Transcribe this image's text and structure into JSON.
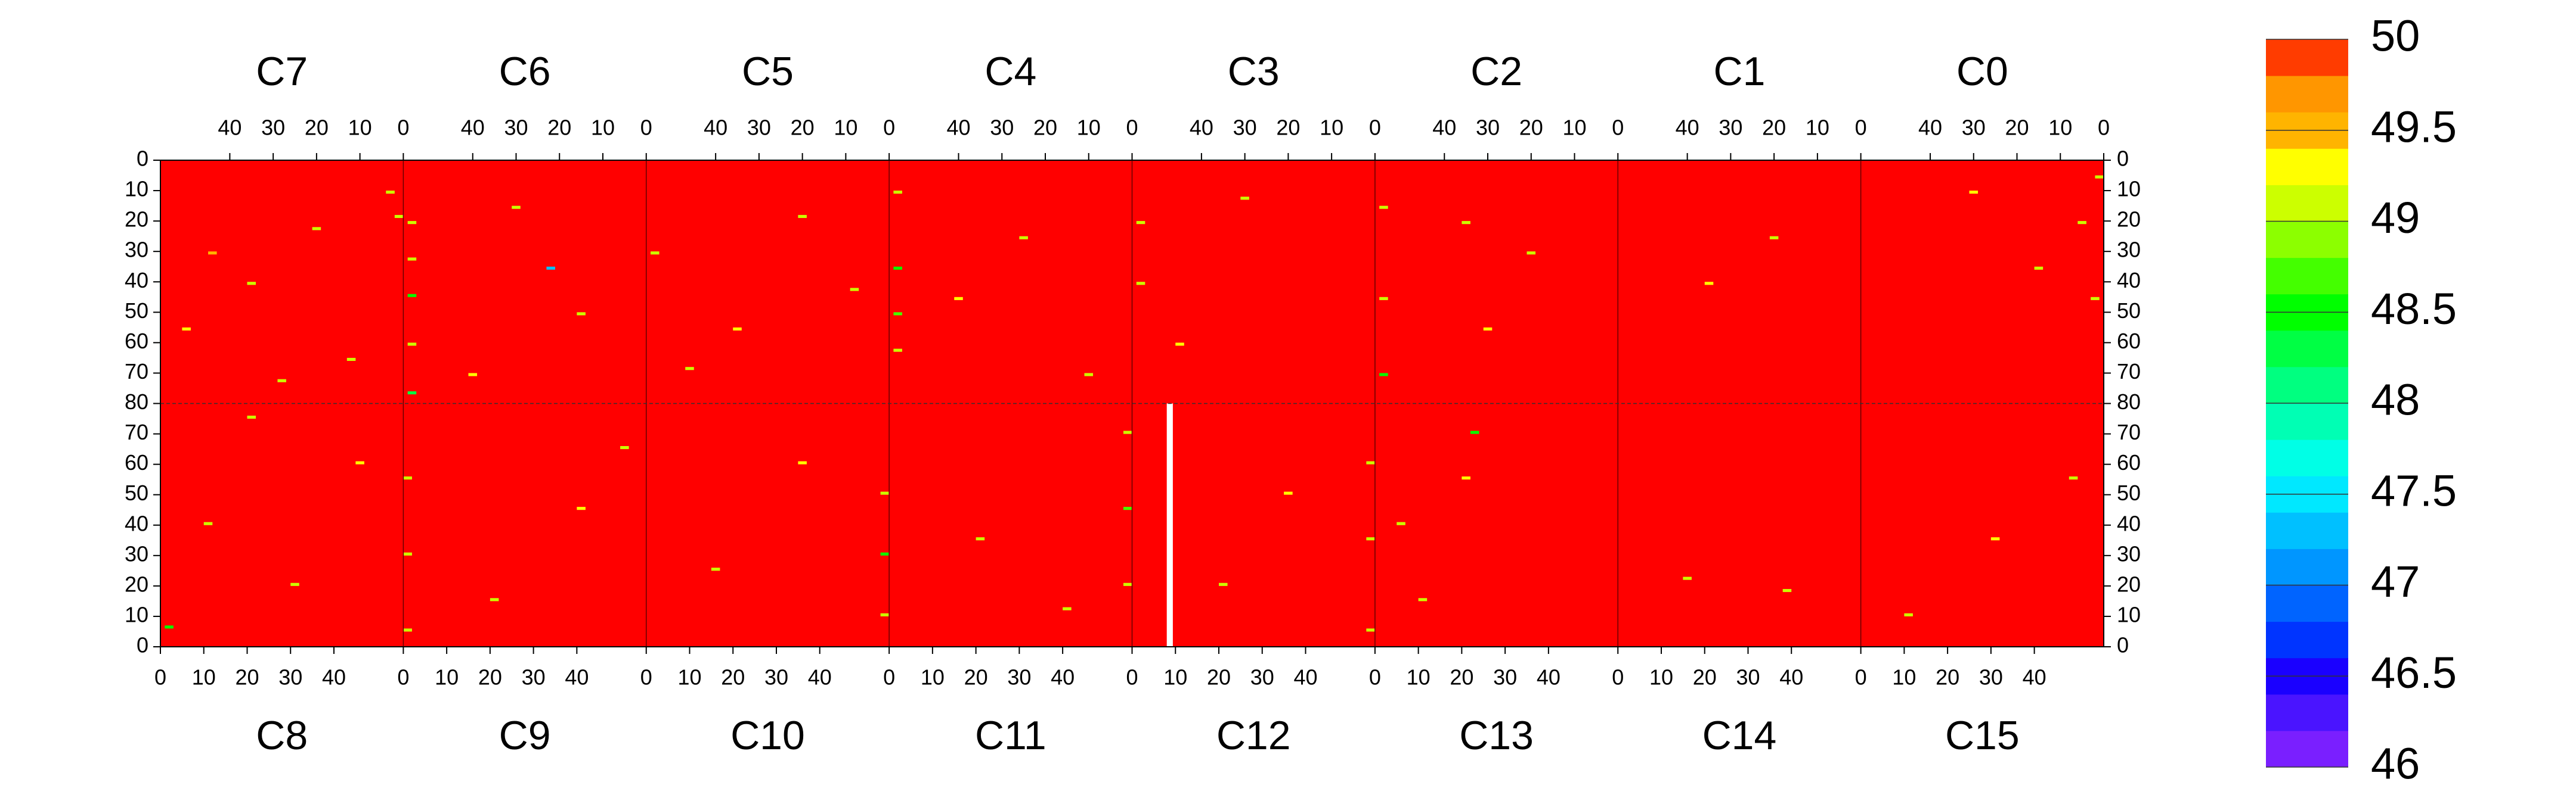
{
  "chart_data": {
    "type": "heatmap",
    "top_chips": [
      "C7",
      "C6",
      "C5",
      "C4",
      "C3",
      "C2",
      "C1",
      "C0"
    ],
    "bottom_chips": [
      "C8",
      "C9",
      "C10",
      "C11",
      "C12",
      "C13",
      "C14",
      "C15"
    ],
    "xlim": [
      0,
      56
    ],
    "xticks": [
      0,
      10,
      20,
      30,
      40
    ],
    "ylim": [
      0,
      80
    ],
    "yticks": [
      0,
      10,
      20,
      30,
      40,
      50,
      60,
      70,
      80
    ],
    "background_value": 50,
    "points": {
      "chip": [
        "C7",
        "C7",
        "C7",
        "C7",
        "C7",
        "C7",
        "C7",
        "C7",
        "C6",
        "C6",
        "C6",
        "C6",
        "C6",
        "C6",
        "C6",
        "C6",
        "C6",
        "C5",
        "C5",
        "C5",
        "C5",
        "C5",
        "C4",
        "C4",
        "C4",
        "C4",
        "C4",
        "C4",
        "C4",
        "C3",
        "C3",
        "C3",
        "C3",
        "C2",
        "C2",
        "C2",
        "C2",
        "C2",
        "C2",
        "C1",
        "C1",
        "C0",
        "C0",
        "C0",
        "C0",
        "C0",
        "C8",
        "C8",
        "C8",
        "C8",
        "C8",
        "C9",
        "C9",
        "C9",
        "C9",
        "C9",
        "C9",
        "C10",
        "C10",
        "C10",
        "C10",
        "C10",
        "C11",
        "C11",
        "C11",
        "C11",
        "C11",
        "C12",
        "C12",
        "C12",
        "C12",
        "C12",
        "C13",
        "C13",
        "C13",
        "C13",
        "C14",
        "C14",
        "C15",
        "C15",
        "C15"
      ],
      "x": [
        3,
        20,
        35,
        50,
        12,
        44,
        1,
        28,
        54,
        54,
        54,
        54,
        54,
        30,
        15,
        40,
        22,
        54,
        20,
        35,
        8,
        46,
        54,
        54,
        54,
        54,
        25,
        40,
        10,
        54,
        54,
        30,
        45,
        54,
        54,
        54,
        20,
        30,
        35,
        20,
        35,
        5,
        2,
        15,
        30,
        1,
        1,
        10,
        30,
        45,
        20,
        0,
        0,
        0,
        20,
        40,
        50,
        54,
        54,
        54,
        15,
        35,
        54,
        54,
        54,
        20,
        40,
        54,
        54,
        54,
        20,
        35,
        5,
        10,
        20,
        22,
        15,
        38,
        10,
        30,
        48
      ],
      "y": [
        10,
        22,
        40,
        55,
        65,
        30,
        18,
        72,
        20,
        32,
        44,
        60,
        76,
        15,
        50,
        70,
        35,
        30,
        18,
        55,
        42,
        68,
        10,
        35,
        50,
        62,
        25,
        45,
        70,
        20,
        40,
        12,
        60,
        15,
        45,
        70,
        30,
        55,
        20,
        25,
        40,
        20,
        45,
        35,
        10,
        5,
        6,
        40,
        20,
        60,
        75,
        5,
        30,
        55,
        15,
        45,
        65,
        10,
        30,
        50,
        25,
        60,
        20,
        45,
        70,
        35,
        12,
        5,
        35,
        60,
        20,
        50,
        40,
        15,
        55,
        70,
        22,
        18,
        10,
        35,
        55
      ],
      "values": [
        49.1,
        49.1,
        49,
        49.2,
        49.1,
        49.4,
        49.1,
        49,
        49,
        49,
        48.4,
        49,
        48.2,
        49.1,
        49,
        49.2,
        47.2,
        49,
        49.1,
        49.2,
        49,
        49.1,
        49,
        48.4,
        48.6,
        49,
        49.1,
        49.2,
        49,
        49,
        49.1,
        49.1,
        49.2,
        49,
        49,
        48.4,
        49.1,
        49.2,
        49,
        49.1,
        49.2,
        49.1,
        49,
        49.1,
        49.2,
        49,
        48.4,
        49.1,
        49,
        49.2,
        49.1,
        49,
        49,
        49.1,
        49.1,
        49.2,
        49,
        49,
        48.4,
        49,
        49.1,
        49.2,
        49,
        48.6,
        49.1,
        49.1,
        49,
        49,
        49.1,
        49,
        49.1,
        49.2,
        49,
        49.1,
        49.2,
        48.4,
        49.1,
        49,
        49.1,
        49.2,
        49
      ]
    },
    "blank": {
      "chip": "C12",
      "x": 8
    },
    "colorbar": {
      "levels": [
        46,
        46.2,
        46.4,
        46.6,
        46.8,
        47,
        47.2,
        47.4,
        47.6,
        47.8,
        48,
        48.2,
        48.4,
        48.6,
        48.8,
        49,
        49.2,
        49.4,
        49.6,
        49.8,
        50
      ],
      "colors": [
        "#7a1fff",
        "#4a14ff",
        "#1a00ff",
        "#0034ff",
        "#0064ff",
        "#0096ff",
        "#00c0ff",
        "#00e8ff",
        "#00ffe6",
        "#00ffb4",
        "#00ff80",
        "#00ff44",
        "#00ff00",
        "#44ff00",
        "#8cff00",
        "#ccff00",
        "#ffff00",
        "#ffb400",
        "#ff9600",
        "#ff3c00"
      ],
      "top_color": "#ff0000",
      "ticks": [
        46,
        46.5,
        47,
        47.5,
        48,
        48.5,
        49,
        49.5,
        50
      ]
    }
  }
}
